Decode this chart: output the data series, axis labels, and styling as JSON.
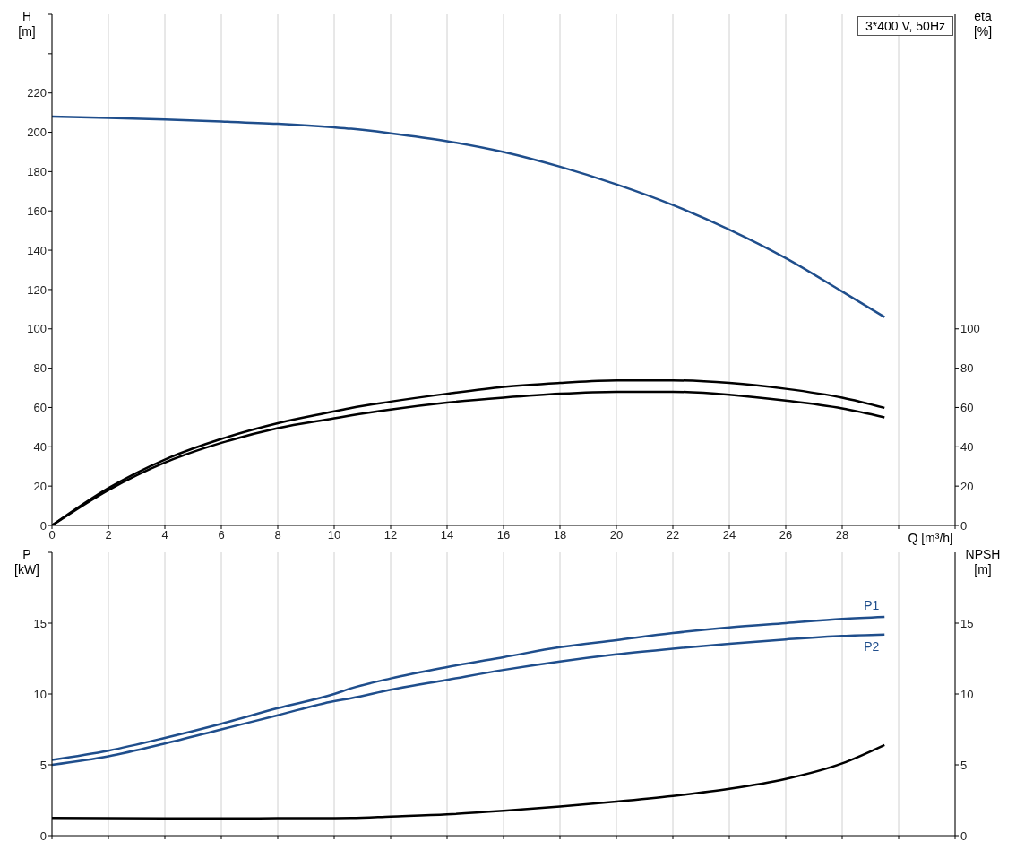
{
  "chart_data": [
    {
      "type": "line",
      "title": "3*400 V, 50Hz",
      "xlabel": "Q [m³/h]",
      "ylabel": "H [m]",
      "y2label": "eta [%]",
      "grid": true,
      "marker": "none",
      "line_style": "solid",
      "x": [
        0,
        2,
        4,
        6,
        8,
        10,
        10.6,
        12,
        14,
        16,
        18,
        20,
        22,
        24,
        26,
        28,
        29.5
      ],
      "xlim": [
        0,
        32
      ],
      "xticks": [
        0,
        2,
        4,
        6,
        8,
        10,
        12,
        14,
        16,
        18,
        20,
        22,
        24,
        26,
        28,
        {
          "value": 30,
          "label": null
        },
        {
          "value": 32,
          "label": null
        }
      ],
      "ylim": [
        0,
        260
      ],
      "yticks": [
        0,
        20,
        40,
        60,
        80,
        100,
        120,
        140,
        160,
        180,
        200,
        220,
        {
          "value": 240,
          "label": null
        },
        {
          "value": 260,
          "label": null
        }
      ],
      "y2lim": [
        0,
        260
      ],
      "y2ticks": [
        0,
        20,
        40,
        60,
        80,
        100
      ],
      "series": [
        {
          "color": "#1f4e8c",
          "values": [
            208,
            207.3,
            206.5,
            205.5,
            204.3,
            202.5,
            201.8,
            199.5,
            195.5,
            190,
            182.5,
            173.5,
            163,
            150.5,
            136,
            119,
            106
          ]
        },
        {
          "color": "#000000",
          "values": [
            0,
            19,
            33.5,
            44,
            52,
            58,
            59.8,
            63,
            67,
            70.5,
            72.5,
            73.8,
            73.8,
            72.5,
            69.5,
            65,
            59.8
          ]
        },
        {
          "color": "#000000",
          "values": [
            0,
            18,
            32,
            42,
            49.5,
            54.5,
            56,
            59,
            62.5,
            65,
            67,
            68,
            68,
            66.5,
            63.5,
            59.5,
            55
          ]
        }
      ]
    },
    {
      "type": "line",
      "ylabel": "P [kW]",
      "y2label": "NPSH [m]",
      "grid": true,
      "marker": "none",
      "line_style": "solid",
      "tick_labels": "y",
      "x": [
        0,
        2,
        4,
        6,
        8,
        10,
        10.6,
        12,
        14,
        16,
        18,
        20,
        22,
        24,
        26,
        28,
        29.5
      ],
      "xlim": [
        0,
        32
      ],
      "xticks": [
        0,
        2,
        4,
        6,
        8,
        10,
        12,
        14,
        16,
        18,
        20,
        22,
        24,
        26,
        28,
        30,
        32
      ],
      "ylim": [
        0,
        20
      ],
      "yticks": [
        0,
        5,
        10,
        15,
        {
          "value": 20,
          "label": null
        }
      ],
      "y2lim": [
        0,
        20
      ],
      "y2ticks": [
        0,
        5,
        10,
        15
      ],
      "series": [
        {
          "name": "P1",
          "color": "#1f4e8c",
          "values": [
            5.35,
            6,
            6.9,
            7.9,
            9,
            10,
            10.4,
            11.1,
            11.9,
            12.6,
            13.3,
            13.8,
            14.3,
            14.7,
            15,
            15.3,
            15.45
          ]
        },
        {
          "name": "P2",
          "color": "#1f4e8c",
          "values": [
            5,
            5.6,
            6.5,
            7.5,
            8.5,
            9.5,
            9.7,
            10.3,
            11,
            11.7,
            12.3,
            12.8,
            13.2,
            13.55,
            13.85,
            14.1,
            14.2
          ]
        },
        {
          "color": "#000000",
          "values": [
            1.25,
            1.23,
            1.22,
            1.22,
            1.23,
            1.24,
            1.25,
            1.35,
            1.5,
            1.75,
            2.05,
            2.4,
            2.8,
            3.3,
            4,
            5.1,
            6.4
          ]
        }
      ]
    }
  ]
}
